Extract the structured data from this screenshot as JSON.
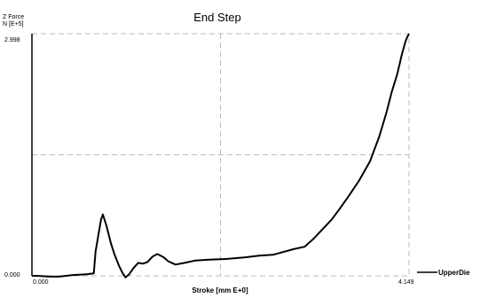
{
  "chart_data": {
    "type": "line",
    "title": "End Step",
    "ylabel_line1": "Z Force",
    "ylabel_line2": "N [E+5]",
    "xlabel": "Stroke  [mm E+0]",
    "x_tick_labels": [
      "0.000",
      "4.149"
    ],
    "y_tick_labels": [
      "0.000",
      "2.998"
    ],
    "xlim": [
      0,
      4.149
    ],
    "ylim": [
      0,
      2.998
    ],
    "grid": true,
    "legend_position": "right",
    "series": [
      {
        "name": "UpperDie",
        "color": "#000000",
        "points": [
          [
            0.0,
            0.0
          ],
          [
            0.05,
            0.0
          ],
          [
            0.2,
            -0.01
          ],
          [
            0.3,
            -0.01
          ],
          [
            0.45,
            0.01
          ],
          [
            0.6,
            0.02
          ],
          [
            0.68,
            0.03
          ],
          [
            0.7,
            0.3
          ],
          [
            0.76,
            0.7
          ],
          [
            0.78,
            0.76
          ],
          [
            0.82,
            0.62
          ],
          [
            0.87,
            0.4
          ],
          [
            0.91,
            0.26
          ],
          [
            0.96,
            0.12
          ],
          [
            1.0,
            0.03
          ],
          [
            1.03,
            -0.02
          ],
          [
            1.07,
            0.02
          ],
          [
            1.12,
            0.1
          ],
          [
            1.17,
            0.16
          ],
          [
            1.22,
            0.15
          ],
          [
            1.27,
            0.17
          ],
          [
            1.33,
            0.24
          ],
          [
            1.38,
            0.27
          ],
          [
            1.45,
            0.23
          ],
          [
            1.5,
            0.18
          ],
          [
            1.58,
            0.14
          ],
          [
            1.68,
            0.16
          ],
          [
            1.8,
            0.19
          ],
          [
            1.95,
            0.2
          ],
          [
            2.15,
            0.21
          ],
          [
            2.35,
            0.23
          ],
          [
            2.5,
            0.25
          ],
          [
            2.65,
            0.26
          ],
          [
            2.78,
            0.3
          ],
          [
            2.88,
            0.33
          ],
          [
            3.0,
            0.36
          ],
          [
            3.1,
            0.46
          ],
          [
            3.2,
            0.58
          ],
          [
            3.3,
            0.7
          ],
          [
            3.38,
            0.82
          ],
          [
            3.48,
            0.98
          ],
          [
            3.6,
            1.18
          ],
          [
            3.72,
            1.42
          ],
          [
            3.82,
            1.72
          ],
          [
            3.9,
            2.02
          ],
          [
            3.96,
            2.28
          ],
          [
            4.02,
            2.5
          ],
          [
            4.07,
            2.74
          ],
          [
            4.11,
            2.9
          ],
          [
            4.13,
            2.96
          ],
          [
            4.149,
            2.998
          ]
        ]
      }
    ]
  }
}
